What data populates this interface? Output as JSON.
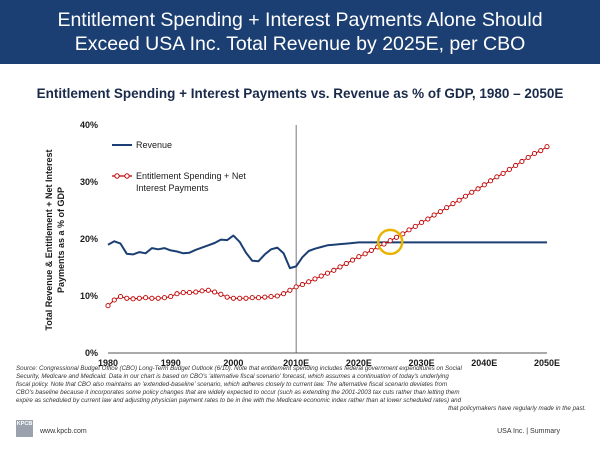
{
  "header": {
    "title_line1": "Entitlement Spending + Interest Payments Alone Should",
    "title_line2": "Exceed USA Inc. Total Revenue by 2025E, per CBO"
  },
  "chart_data": {
    "type": "line",
    "title": "Entitlement Spending + Interest Payments vs. Revenue as % of GDP, 1980 – 2050E",
    "ylabel": "Total Revenue & Entitlement + Net Interest Payments as a % of GDP",
    "xlabel": "",
    "ylim": [
      0,
      40
    ],
    "xlim": [
      1980,
      2050
    ],
    "y_ticks": [
      "0%",
      "10%",
      "20%",
      "30%",
      "40%"
    ],
    "x_ticks": [
      "1980",
      "1990",
      "2000",
      "2010E",
      "2020E",
      "2030E",
      "2040E",
      "2050E"
    ],
    "vertical_line_at": 2010,
    "highlight_circle": {
      "x": 2025,
      "y": 19.5
    },
    "legend_placement": "top-left",
    "series": [
      {
        "name": "Revenue",
        "color": "#1c3f73",
        "marker": "none",
        "x": [
          1980,
          1981,
          1982,
          1983,
          1984,
          1985,
          1986,
          1987,
          1988,
          1989,
          1990,
          1991,
          1992,
          1993,
          1994,
          1995,
          1996,
          1997,
          1998,
          1999,
          2000,
          2001,
          2002,
          2003,
          2004,
          2005,
          2006,
          2007,
          2008,
          2009,
          2010,
          2011,
          2012,
          2013,
          2014,
          2015,
          2016,
          2017,
          2018,
          2019,
          2020,
          2025,
          2030,
          2040,
          2050
        ],
        "values": [
          19.0,
          19.6,
          19.2,
          17.4,
          17.3,
          17.7,
          17.5,
          18.4,
          18.2,
          18.4,
          18.0,
          17.8,
          17.5,
          17.6,
          18.1,
          18.5,
          18.9,
          19.3,
          19.9,
          19.8,
          20.6,
          19.5,
          17.6,
          16.2,
          16.1,
          17.3,
          18.2,
          18.5,
          17.5,
          14.9,
          15.2,
          16.8,
          17.9,
          18.3,
          18.6,
          18.9,
          19.0,
          19.1,
          19.2,
          19.3,
          19.4,
          19.4,
          19.4,
          19.4,
          19.4
        ]
      },
      {
        "name": "Entitlement Spending + Net Interest Payments",
        "color": "#c00000",
        "marker": "circle",
        "x": [
          1980,
          1981,
          1982,
          1983,
          1984,
          1985,
          1986,
          1987,
          1988,
          1989,
          1990,
          1991,
          1992,
          1993,
          1994,
          1995,
          1996,
          1997,
          1998,
          1999,
          2000,
          2001,
          2002,
          2003,
          2004,
          2005,
          2006,
          2007,
          2008,
          2009,
          2010,
          2011,
          2012,
          2013,
          2014,
          2015,
          2016,
          2017,
          2018,
          2019,
          2020,
          2021,
          2022,
          2023,
          2024,
          2025,
          2026,
          2027,
          2028,
          2029,
          2030,
          2031,
          2032,
          2033,
          2034,
          2035,
          2036,
          2037,
          2038,
          2039,
          2040,
          2041,
          2042,
          2043,
          2044,
          2045,
          2046,
          2047,
          2048,
          2049,
          2050
        ],
        "values": [
          8.3,
          9.3,
          9.9,
          9.6,
          9.5,
          9.6,
          9.7,
          9.6,
          9.6,
          9.7,
          9.9,
          10.4,
          10.6,
          10.6,
          10.7,
          10.9,
          11.0,
          10.7,
          10.3,
          9.8,
          9.6,
          9.6,
          9.6,
          9.7,
          9.7,
          9.8,
          9.9,
          10.0,
          10.4,
          11.0,
          11.6,
          12.0,
          12.5,
          13.0,
          13.5,
          14.0,
          14.5,
          15.1,
          15.7,
          16.3,
          16.9,
          17.4,
          18.0,
          18.6,
          19.1,
          19.7,
          20.3,
          20.9,
          21.6,
          22.2,
          22.9,
          23.5,
          24.2,
          24.8,
          25.5,
          26.2,
          26.8,
          27.5,
          28.2,
          28.8,
          29.5,
          30.2,
          30.9,
          31.5,
          32.2,
          32.9,
          33.6,
          34.3,
          35.0,
          35.5,
          36.2
        ]
      }
    ]
  },
  "legend": {
    "revenue_label": "Revenue",
    "entitlement_label_line1": "Entitlement Spending + Net",
    "entitlement_label_line2": "Interest Payments"
  },
  "ylabel_lines": {
    "line1": "Total Revenue & Entitlement + Net Interest",
    "line2": "Payments as a % of GDP"
  },
  "source_note": {
    "line1": "Source: Congressional Budget Office (CBO) Long-Term Budget Outlook (6/10). Note that entitlement spending includes federal government expenditures on Social",
    "line2": "Security, Medicare and Medicaid. Data in our chart is based on CBO's 'alternative fiscal scenario' forecast, which assumes a continuation of today's underlying",
    "line3": "fiscal policy. Note that CBO also maintains an 'extended-baseline' scenario, which adheres closely to current law. The alternative fiscal scenario deviates from",
    "line4": "CBO's baseline because it incorporates some policy changes that are widely expected to occur (such as extending the 2001-2003 tax cuts rather than letting them",
    "line5": "expire as scheduled by current law and adjusting physician payment rates to be in line with the Medicare economic index rather than at lower scheduled rates) and",
    "line6": "that policymakers have regularly made in the past."
  },
  "footer": {
    "logo_text": "KPCB",
    "site": "www.kpcb.com",
    "right": "USA Inc. | Summary"
  }
}
